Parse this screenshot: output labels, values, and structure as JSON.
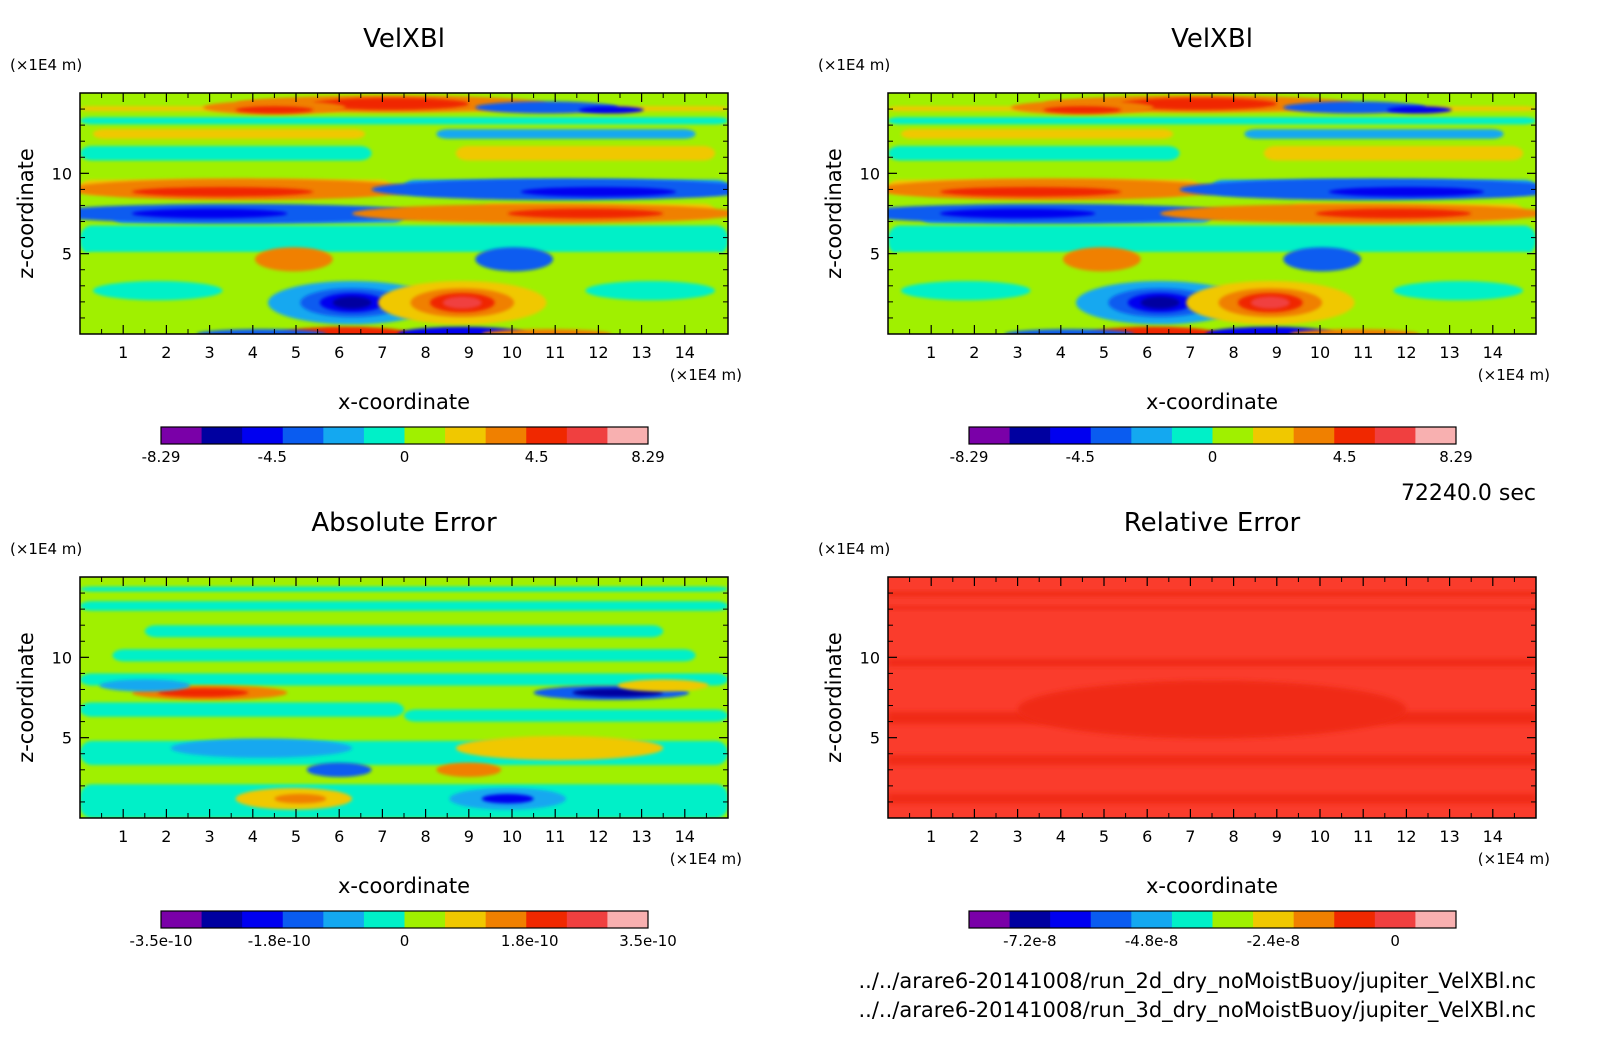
{
  "colors": {
    "scale": [
      "#7a00a8",
      "#0000a0",
      "#0000f0",
      "#0a5cf0",
      "#14a8f0",
      "#00f0c8",
      "#a0f000",
      "#f0c800",
      "#f08000",
      "#f02800",
      "#f04040",
      "#f8b0b0"
    ],
    "relative_fill": "#fa3c2c",
    "relative_fill_dark": "#f02a14"
  },
  "time_label": "72240.0 sec",
  "files": [
    "../../arare6-20141008/run_2d_dry_noMoistBuoy/jupiter_VelXBl.nc",
    "../../arare6-20141008/run_3d_dry_noMoistBuoy/jupiter_VelXBl.nc"
  ],
  "chart_data": [
    {
      "type": "heatmap",
      "title": "VelXBl",
      "xlabel": "x-coordinate",
      "ylabel": "z-coordinate",
      "x_unit": "(×1E4 m)",
      "y_unit": "(×1E4 m)",
      "xlim": [
        0,
        15
      ],
      "ylim": [
        0,
        15
      ],
      "x_ticks": [
        "1",
        "2",
        "3",
        "4",
        "5",
        "6",
        "7",
        "8",
        "9",
        "10",
        "11",
        "12",
        "13",
        "14"
      ],
      "y_ticks": [
        "5",
        "10"
      ],
      "colorbar_labels": [
        "-8.29",
        "-4.5",
        "0",
        "4.5",
        "8.29"
      ],
      "colorbar_range": [
        -8.29,
        8.29
      ],
      "grid": false
    },
    {
      "type": "heatmap",
      "title": "VelXBl",
      "xlabel": "x-coordinate",
      "ylabel": "z-coordinate",
      "x_unit": "(×1E4 m)",
      "y_unit": "(×1E4 m)",
      "xlim": [
        0,
        15
      ],
      "ylim": [
        0,
        15
      ],
      "x_ticks": [
        "1",
        "2",
        "3",
        "4",
        "5",
        "6",
        "7",
        "8",
        "9",
        "10",
        "11",
        "12",
        "13",
        "14"
      ],
      "y_ticks": [
        "5",
        "10"
      ],
      "colorbar_labels": [
        "-8.29",
        "-4.5",
        "0",
        "4.5",
        "8.29"
      ],
      "colorbar_range": [
        -8.29,
        8.29
      ],
      "grid": false
    },
    {
      "type": "heatmap",
      "title": "Absolute Error",
      "xlabel": "x-coordinate",
      "ylabel": "z-coordinate",
      "x_unit": "(×1E4 m)",
      "y_unit": "(×1E4 m)",
      "xlim": [
        0,
        15
      ],
      "ylim": [
        0,
        15
      ],
      "x_ticks": [
        "1",
        "2",
        "3",
        "4",
        "5",
        "6",
        "7",
        "8",
        "9",
        "10",
        "11",
        "12",
        "13",
        "14"
      ],
      "y_ticks": [
        "5",
        "10"
      ],
      "colorbar_labels": [
        "-3.5e-10",
        "-1.8e-10",
        "0",
        "1.8e-10",
        "3.5e-10"
      ],
      "colorbar_range": [
        -3.5e-10,
        3.5e-10
      ],
      "grid": false
    },
    {
      "type": "heatmap",
      "title": "Relative Error",
      "xlabel": "x-coordinate",
      "ylabel": "z-coordinate",
      "x_unit": "(×1E4 m)",
      "y_unit": "(×1E4 m)",
      "xlim": [
        0,
        15
      ],
      "ylim": [
        0,
        15
      ],
      "x_ticks": [
        "1",
        "2",
        "3",
        "4",
        "5",
        "6",
        "7",
        "8",
        "9",
        "10",
        "11",
        "12",
        "13",
        "14"
      ],
      "y_ticks": [
        "5",
        "10"
      ],
      "colorbar_labels": [
        "-7.2e-8",
        "-4.8e-8",
        "-2.4e-8",
        "0"
      ],
      "colorbar_range": [
        -8.4e-08,
        1.2e-08
      ],
      "grid": false
    }
  ]
}
